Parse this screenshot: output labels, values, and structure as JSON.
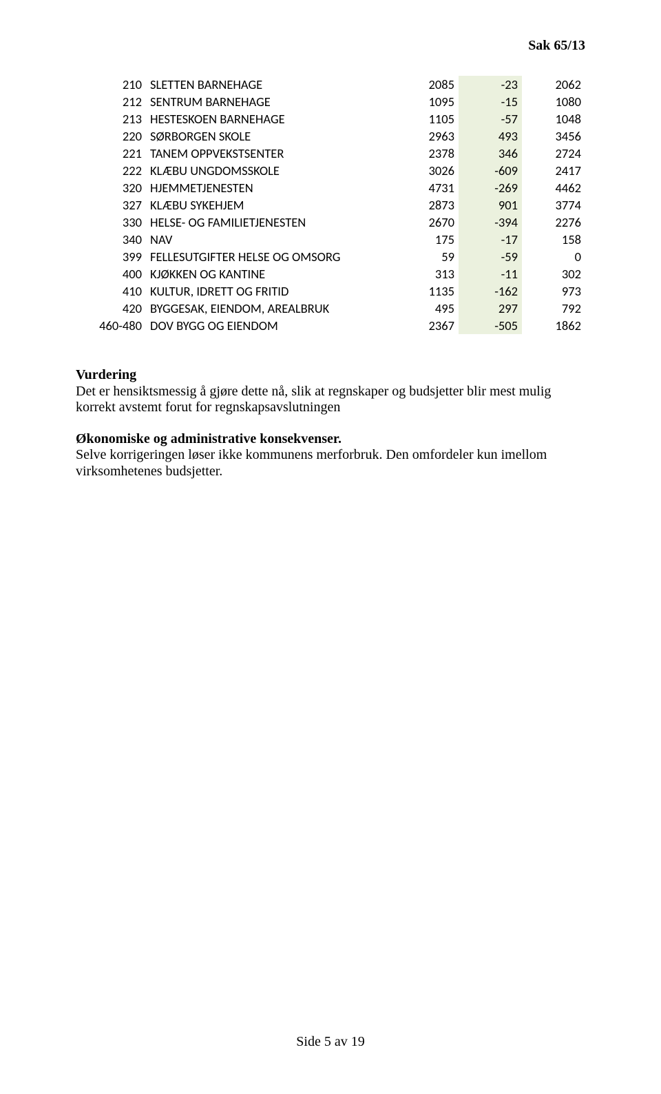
{
  "header": {
    "sak": "Sak 65/13"
  },
  "table": {
    "rows": [
      {
        "code": "210",
        "name": "SLETTEN BARNEHAGE",
        "v1": "2085",
        "v2": "-23",
        "v3": "2062"
      },
      {
        "code": "212",
        "name": "SENTRUM BARNEHAGE",
        "v1": "1095",
        "v2": "-15",
        "v3": "1080"
      },
      {
        "code": "213",
        "name": "HESTESKOEN BARNEHAGE",
        "v1": "1105",
        "v2": "-57",
        "v3": "1048"
      },
      {
        "code": "220",
        "name": "SØRBORGEN SKOLE",
        "v1": "2963",
        "v2": "493",
        "v3": "3456"
      },
      {
        "code": "221",
        "name": "TANEM OPPVEKSTSENTER",
        "v1": "2378",
        "v2": "346",
        "v3": "2724"
      },
      {
        "code": "222",
        "name": "KLÆBU UNGDOMSSKOLE",
        "v1": "3026",
        "v2": "-609",
        "v3": "2417"
      },
      {
        "code": "320",
        "name": "HJEMMETJENESTEN",
        "v1": "4731",
        "v2": "-269",
        "v3": "4462"
      },
      {
        "code": "327",
        "name": "KLÆBU SYKEHJEM",
        "v1": "2873",
        "v2": "901",
        "v3": "3774"
      },
      {
        "code": "330",
        "name": "HELSE- OG FAMILIETJENESTEN",
        "v1": "2670",
        "v2": "-394",
        "v3": "2276"
      },
      {
        "code": "340",
        "name": "NAV",
        "v1": "175",
        "v2": "-17",
        "v3": "158"
      },
      {
        "code": "399",
        "name": "FELLESUTGIFTER HELSE OG OMSORG",
        "v1": "59",
        "v2": "-59",
        "v3": "0"
      },
      {
        "code": "400",
        "name": "KJØKKEN OG KANTINE",
        "v1": "313",
        "v2": "-11",
        "v3": "302"
      },
      {
        "code": "410",
        "name": "KULTUR, IDRETT OG FRITID",
        "v1": "1135",
        "v2": "-162",
        "v3": "973"
      },
      {
        "code": "420",
        "name": "BYGGESAK, EIENDOM, AREALBRUK",
        "v1": "495",
        "v2": "297",
        "v3": "792"
      },
      {
        "code": "460-480",
        "name": "DOV BYGG OG EIENDOM",
        "v1": "2367",
        "v2": "-505",
        "v3": "1862"
      }
    ],
    "highlight_color": "#ebf1de"
  },
  "body": {
    "vurdering_heading": "Vurdering",
    "vurdering_text": "Det er hensiktsmessig å gjøre dette nå, slik at regnskaper og budsjetter blir mest mulig korrekt avstemt forut for regnskapsavslutningen",
    "okonomi_heading": "Økonomiske og administrative konsekvenser.",
    "okonomi_text": "Selve korrigeringen løser ikke kommunens merforbruk. Den omfordeler kun imellom virksomhetenes budsjetter."
  },
  "footer": {
    "text": "Side 5 av 19"
  }
}
